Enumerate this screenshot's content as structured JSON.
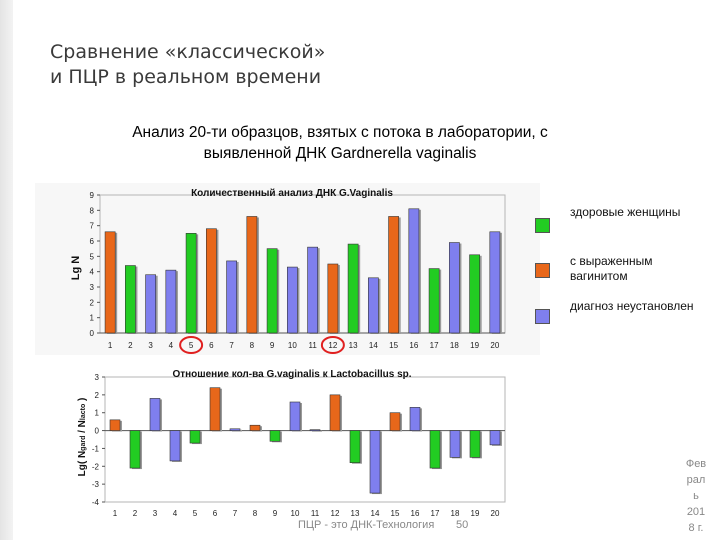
{
  "slide": {
    "title_line1": "Сравнение «классической»",
    "title_line2": "и ПЦР в реальном времени",
    "subtitle_line1": "Анализ 20-ти образцов, взятых с потока в лаборатории, с",
    "subtitle_line2": "выявленной ДНК Gardnerella vaginalis"
  },
  "footer": {
    "center_text": "ПЦР - это ДНК-Технология",
    "page_number": "50",
    "date_lines": [
      "Фев",
      "рал",
      "ь",
      "201",
      "8 г."
    ]
  },
  "legend": [
    {
      "label": "здоровые женщины",
      "color": "#22cc22"
    },
    {
      "label": "с выраженным вагинитом",
      "color": "#e8671a"
    },
    {
      "label": "диагноз неустановлен",
      "color": "#7f7fee"
    }
  ],
  "chart_data": [
    {
      "type": "bar",
      "title": "Количественный анализ ДНК G.Vaginalis",
      "ylabel": "Lg N",
      "xlabel": "",
      "ylim": [
        0,
        9
      ],
      "yticks": [
        "0",
        "1",
        "2",
        "3",
        "4",
        "5",
        "6",
        "7",
        "8",
        "9"
      ],
      "categories": [
        "1",
        "2",
        "3",
        "4",
        "5",
        "6",
        "7",
        "8",
        "9",
        "10",
        "11",
        "12",
        "13",
        "14",
        "15",
        "16",
        "17",
        "18",
        "19",
        "20"
      ],
      "values": [
        6.6,
        4.4,
        3.8,
        4.1,
        6.5,
        6.8,
        4.7,
        7.6,
        5.5,
        4.3,
        5.6,
        4.5,
        5.8,
        3.6,
        7.6,
        8.1,
        4.2,
        5.9,
        5.1,
        6.6
      ],
      "groups": [
        "orange",
        "green",
        "blue",
        "blue",
        "green",
        "orange",
        "blue",
        "orange",
        "green",
        "blue",
        "blue",
        "orange",
        "green",
        "blue",
        "orange",
        "blue",
        "green",
        "blue",
        "green",
        "blue"
      ],
      "circled_categories": [
        "5",
        "12"
      ],
      "grid": false
    },
    {
      "type": "bar",
      "title": "Отношение кол-ва G.vaginalis к Lactobacillus sp.",
      "ylabel": "Lg( Ngard / Nlacto )",
      "xlabel": "",
      "ylim": [
        -4,
        3
      ],
      "yticks": [
        "-4",
        "-3",
        "-2",
        "-1",
        "0",
        "1",
        "2",
        "3"
      ],
      "categories": [
        "1",
        "2",
        "3",
        "4",
        "5",
        "6",
        "7",
        "8",
        "9",
        "10",
        "11",
        "12",
        "13",
        "14",
        "15",
        "16",
        "17",
        "18",
        "19",
        "20"
      ],
      "values": [
        0.6,
        -2.1,
        1.8,
        -1.7,
        -0.7,
        2.4,
        0.1,
        0.3,
        -0.6,
        1.6,
        0.05,
        2.0,
        -1.8,
        -3.5,
        1.0,
        1.3,
        -2.1,
        -1.5,
        -1.5,
        -0.8
      ],
      "groups": [
        "orange",
        "green",
        "blue",
        "blue",
        "green",
        "orange",
        "blue",
        "orange",
        "green",
        "blue",
        "blue",
        "orange",
        "green",
        "blue",
        "orange",
        "blue",
        "green",
        "blue",
        "green",
        "blue"
      ],
      "grid": false
    }
  ]
}
